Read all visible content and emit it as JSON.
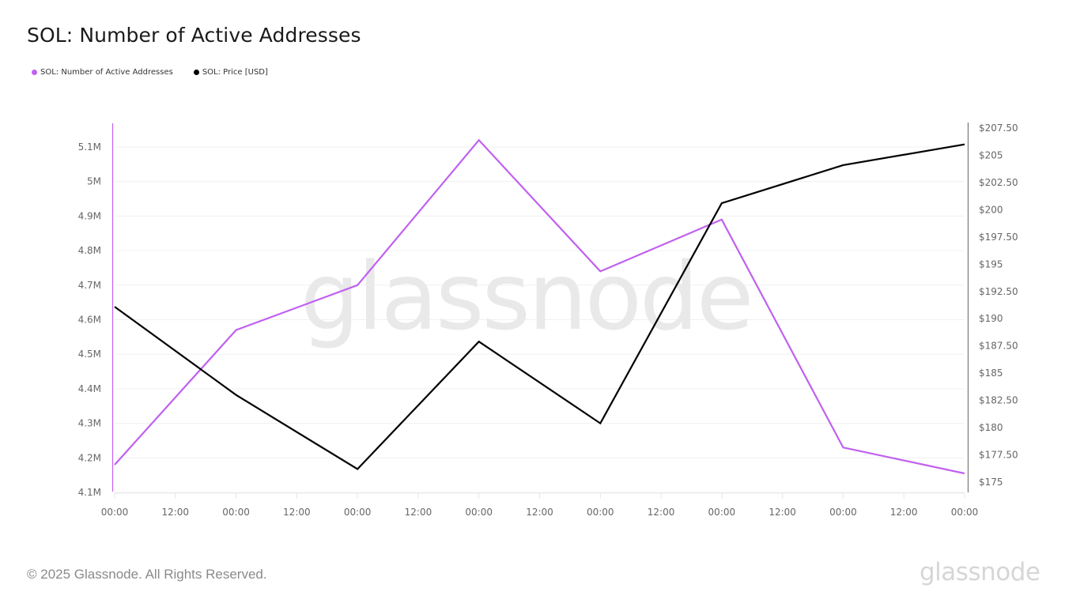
{
  "header": {
    "title": "SOL: Number of Active Addresses"
  },
  "legend": [
    {
      "label": "SOL: Number of Active Addresses",
      "color": "#c061f0"
    },
    {
      "label": "SOL: Price [USD]",
      "color": "#000000"
    }
  ],
  "watermark": "glassnode",
  "footer": {
    "copyright": "© 2025 Glassnode. All Rights Reserved.",
    "brand": "glassnode"
  },
  "chart_data": {
    "type": "line",
    "title": "SOL: Number of Active Addresses",
    "xlabel": "",
    "ylabel": "",
    "x_ticks": [
      "00:00",
      "12:00",
      "00:00",
      "12:00",
      "00:00",
      "12:00",
      "00:00",
      "12:00",
      "00:00",
      "12:00",
      "00:00",
      "12:00",
      "00:00",
      "12:00",
      "00:00"
    ],
    "x": [
      "00:00",
      "00:00",
      "00:00",
      "00:00",
      "00:00",
      "00:00",
      "00:00",
      "00:00"
    ],
    "series": [
      {
        "name": "SOL: Number of Active Addresses",
        "axis": "left",
        "color": "#c061f0",
        "values": [
          4180000,
          4570000,
          4700000,
          5120000,
          4740000,
          4890000,
          4230000,
          4155000
        ]
      },
      {
        "name": "SOL: Price [USD]",
        "axis": "right",
        "color": "#000000",
        "values": [
          191.1,
          183.0,
          176.2,
          187.9,
          180.4,
          200.6,
          204.1,
          206.0
        ]
      }
    ],
    "y_left": {
      "ticks": [
        "5.1M",
        "5M",
        "4.9M",
        "4.8M",
        "4.7M",
        "4.6M",
        "4.5M",
        "4.4M",
        "4.3M",
        "4.2M",
        "4.1M"
      ],
      "range": [
        4100000,
        5150000
      ]
    },
    "y_right": {
      "ticks": [
        "$207.50",
        "$205",
        "$202.50",
        "$200",
        "$197.50",
        "$195",
        "$192.50",
        "$190",
        "$187.50",
        "$185",
        "$182.50",
        "$180",
        "$177.50",
        "$175"
      ],
      "range": [
        175,
        207.5
      ]
    },
    "grid": true,
    "legend_position": "top-left"
  }
}
